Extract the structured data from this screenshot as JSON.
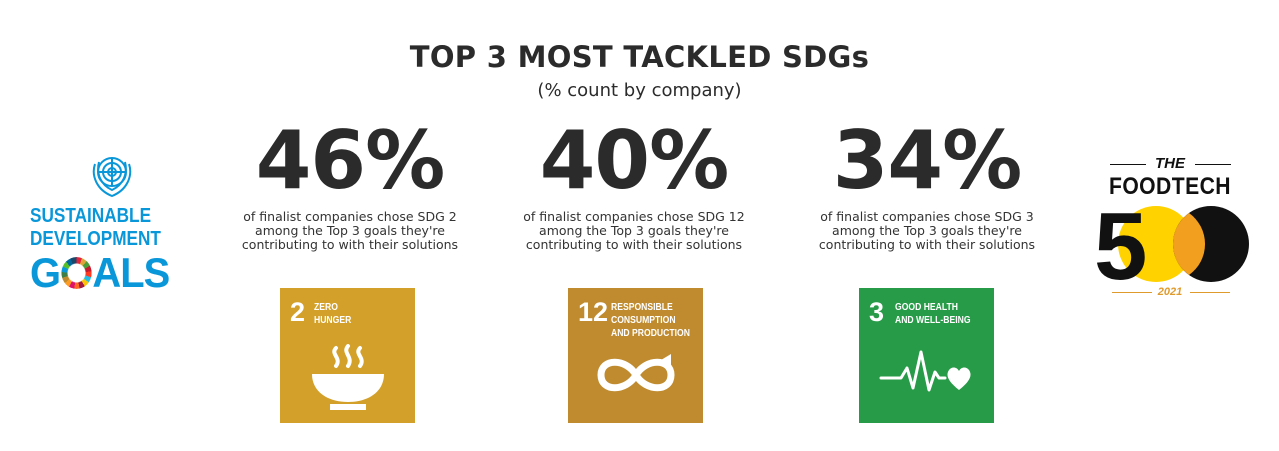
{
  "header": {
    "title": "TOP 3 MOST TACKLED SDGs",
    "subtitle": "(% count by company)"
  },
  "stats": [
    {
      "value": "46%",
      "description": "of finalist companies chose SDG 2 among the Top 3 goals they're contributing to with their solutions",
      "tile": {
        "number": "2",
        "label_line1": "ZERO",
        "label_line2": "HUNGER",
        "label_line3": "",
        "color": "#d3a029",
        "icon": "bowl-icon"
      }
    },
    {
      "value": "40%",
      "description": "of finalist companies chose SDG 12 among the Top 3 goals they're contributing to with their solutions",
      "tile": {
        "number": "12",
        "label_line1": "RESPONSIBLE",
        "label_line2": "CONSUMPTION",
        "label_line3": "AND PRODUCTION",
        "color": "#bf8b2e",
        "icon": "infinity-icon"
      }
    },
    {
      "value": "34%",
      "description": "of finalist companies chose SDG 3 among the Top 3 goals they're contributing to with their solutions",
      "tile": {
        "number": "3",
        "label_line1": "GOOD HEALTH",
        "label_line2": "AND WELL-BEING",
        "label_line3": "",
        "color": "#279b48",
        "icon": "heartbeat-icon"
      }
    }
  ],
  "logos": {
    "sdg": {
      "line1": "SUSTAINABLE",
      "line2": "DEVELOPMENT",
      "line3_before": "G",
      "line3_after": "ALS",
      "color": "#0a97d9",
      "icon": "un-emblem-icon"
    },
    "foodtech": {
      "the": "THE",
      "brand": "FOODTECH",
      "digit": "5",
      "year": "2021",
      "accent": "#ffd200",
      "accent2": "#e09b2d"
    }
  }
}
